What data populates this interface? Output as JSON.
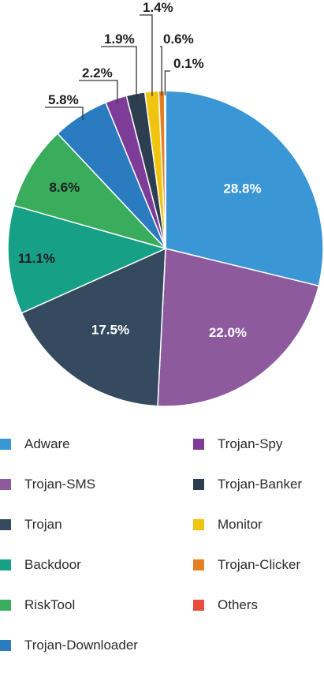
{
  "chart_data": {
    "type": "pie",
    "categories": [
      "Adware",
      "Trojan-SMS",
      "Trojan",
      "Backdoor",
      "RiskTool",
      "Trojan-Downloader",
      "Trojan-Spy",
      "Trojan-Banker",
      "Monitor",
      "Trojan-Clicker",
      "Others"
    ],
    "values": [
      28.8,
      22.0,
      17.5,
      11.1,
      8.6,
      5.8,
      2.2,
      1.9,
      1.4,
      0.6,
      0.1
    ],
    "labels": [
      "28.8%",
      "22.0%",
      "17.5%",
      "11.1%",
      "8.6%",
      "5.8%",
      "2.2%",
      "1.9%",
      "1.4%",
      "0.6%",
      "0.1%"
    ],
    "colors": [
      "#3a96d4",
      "#8d5a9e",
      "#354a5f",
      "#16a085",
      "#3aad5d",
      "#2a7bbf",
      "#7d3c98",
      "#2c3e50",
      "#f1c40f",
      "#e67e22",
      "#e74c3c"
    ],
    "legend_position": "bottom",
    "title": ""
  },
  "legend": {
    "left_column": [
      "Adware",
      "Trojan-SMS",
      "Trojan",
      "Backdoor",
      "RiskTool",
      "Trojan-Downloader"
    ],
    "right_column": [
      "Trojan-Spy",
      "Trojan-Banker",
      "Monitor",
      "Trojan-Clicker",
      "Others"
    ]
  }
}
